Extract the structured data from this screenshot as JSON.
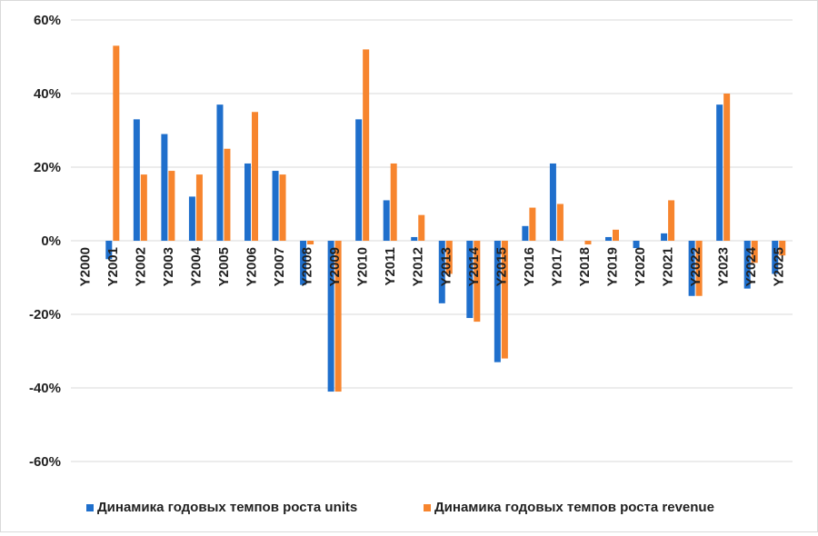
{
  "chart_data": {
    "type": "bar",
    "title": "",
    "xlabel": "",
    "ylabel": "",
    "categories": [
      "Y2000",
      "Y2001",
      "Y2002",
      "Y2003",
      "Y2004",
      "Y2005",
      "Y2006",
      "Y2007",
      "Y2008",
      "Y2009",
      "Y2010",
      "Y2011",
      "Y2012",
      "Y2013",
      "Y2014",
      "Y2015",
      "Y2016",
      "Y2017",
      "Y2018",
      "Y2019",
      "Y2020",
      "Y2021",
      "Y2022",
      "Y2023",
      "Y2024",
      "Y2025"
    ],
    "series": [
      {
        "name": "Динамика годовых темпов роста units",
        "color": "#1f6fcc",
        "values": [
          0,
          -5,
          33,
          29,
          12,
          37,
          21,
          19,
          -12,
          -41,
          33,
          11,
          1,
          -17,
          -21,
          -33,
          4,
          21,
          0,
          1,
          -2,
          2,
          -15,
          37,
          -13,
          -9
        ]
      },
      {
        "name": "Динамика годовых темпов роста revenue",
        "color": "#f7852e",
        "values": [
          0,
          53,
          18,
          19,
          18,
          25,
          35,
          18,
          -1,
          -41,
          52,
          21,
          7,
          -9,
          -22,
          -32,
          9,
          10,
          -1,
          3,
          0,
          11,
          -15,
          40,
          -6,
          -4
        ]
      }
    ],
    "ylim": [
      -60,
      60
    ],
    "yticks": [
      60,
      40,
      20,
      0,
      -20,
      -40,
      -60
    ],
    "ytick_labels": [
      "60%",
      "40%",
      "20%",
      "0%",
      "-20%",
      "-40%",
      "-60%"
    ],
    "grid": true,
    "legend_position": "bottom"
  }
}
